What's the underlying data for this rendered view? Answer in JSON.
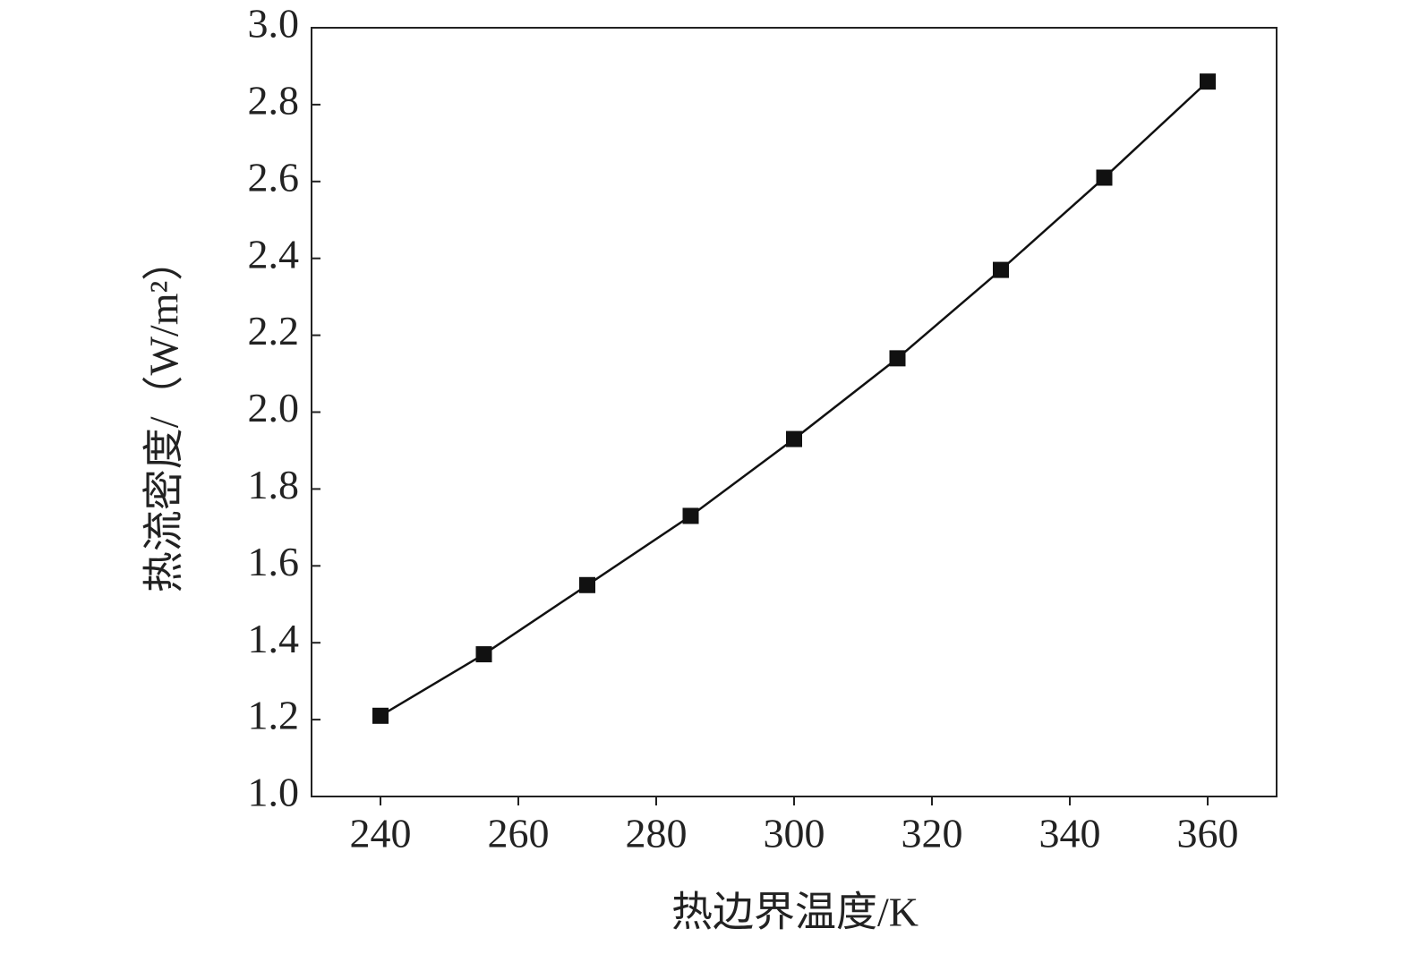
{
  "chart_data": {
    "type": "line",
    "x_label": "热边界温度/K",
    "y_label": "热流密度/（W/m²）",
    "x": [
      240,
      255,
      270,
      285,
      300,
      315,
      330,
      345,
      360
    ],
    "values": [
      1.21,
      1.37,
      1.55,
      1.73,
      1.93,
      2.14,
      2.37,
      2.61,
      2.86
    ],
    "color": "#111111",
    "marker": "square",
    "xlim": [
      230,
      370
    ],
    "xticks": [
      240,
      260,
      280,
      300,
      320,
      340,
      360
    ],
    "ylim": [
      1.0,
      3.0
    ],
    "yticks": [
      {
        "value": 1.0,
        "label": "1.0"
      },
      1.2,
      1.4,
      1.6,
      1.8,
      {
        "value": 2.0,
        "label": "2.0"
      },
      2.2,
      2.4,
      2.6,
      2.8,
      {
        "value": 3.0,
        "label": "3.0"
      }
    ],
    "grid": false
  }
}
